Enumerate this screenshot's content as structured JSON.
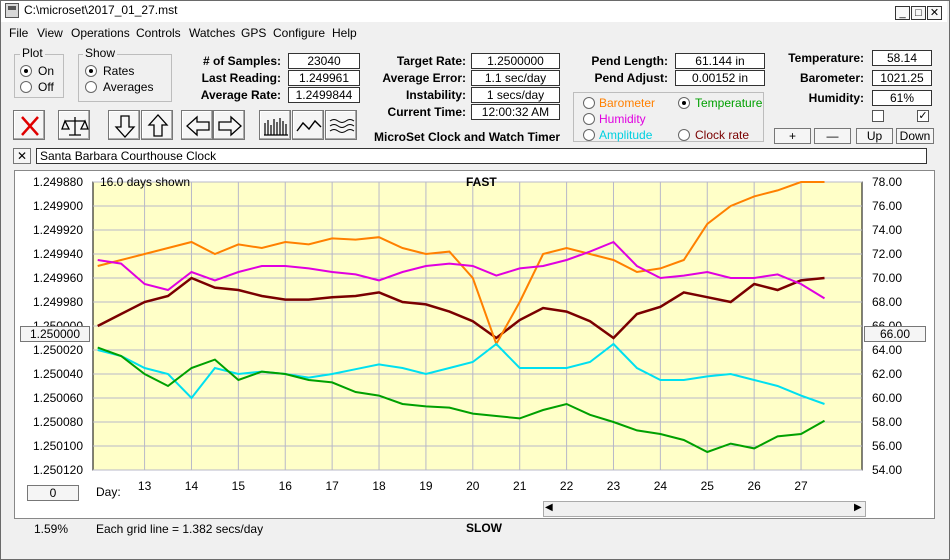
{
  "window": {
    "title": "C:\\microset\\2017_01_27.mst",
    "minimize": "_",
    "maximize": "□",
    "close": "✕"
  },
  "menu": [
    "File",
    "View",
    "Operations",
    "Controls",
    "Watches",
    "GPS",
    "Configure",
    "Help"
  ],
  "plot_group": {
    "title": "Plot",
    "on": "On",
    "off": "Off",
    "selected": "On"
  },
  "show_group": {
    "title": "Show",
    "rates": "Rates",
    "averages": "Averages",
    "selected": "Rates"
  },
  "stats": {
    "samples_label": "# of Samples:",
    "samples": "23040",
    "last_reading_label": "Last Reading:",
    "last_reading": "1.249961",
    "average_rate_label": "Average Rate:",
    "average_rate": "1.2499844",
    "target_rate_label": "Target Rate:",
    "target_rate": "1.2500000",
    "average_error_label": "Average Error:",
    "average_error": "1.1 sec/day",
    "instability_label": "Instability:",
    "instability": "1 secs/day",
    "current_time_label": "Current Time:",
    "current_time": "12:00:32 AM",
    "pend_length_label": "Pend Length:",
    "pend_length": "61.144 in",
    "pend_adjust_label": "Pend Adjust:",
    "pend_adjust": "0.00152 in"
  },
  "env": {
    "temperature_label": "Temperature:",
    "temperature": "58.14",
    "barometer_label": "Barometer:",
    "barometer": "1021.25",
    "humidity_label": "Humidity:",
    "humidity": "61%",
    "checkbox1": "",
    "checkbox2": "✓",
    "plus": "+",
    "minus": "—",
    "up": "Up",
    "down": "Down"
  },
  "app_name": "MicroSet Clock and Watch Timer",
  "aux_options": {
    "barometer": "Barometer",
    "temperature": "Temperature",
    "humidity": "Humidity",
    "amplitude": "Amplitude",
    "clock_rate": "Clock rate",
    "selected": "Temperature"
  },
  "clock": {
    "close": "✕",
    "name": "Santa Barbara Courthouse Clock"
  },
  "chart_labels": {
    "days_shown": "16.0 days shown",
    "fast": "FAST",
    "slow": "SLOW",
    "day_prefix": "Day:",
    "grid_note": "Each grid line = 1.382 secs/day",
    "percent": "1.59%",
    "left_btn": "1.250000",
    "right_btn": "66.00",
    "bottom_btn": "0"
  },
  "colors": {
    "rate": "#7a0000",
    "barometer": "#ff8000",
    "temperature": "#00a000",
    "humidity": "#e000e0",
    "amplitude": "#00e0f0",
    "plot_bg": "#ffffc8",
    "grid": "#b8b8c8"
  },
  "chart_data": {
    "type": "line",
    "x_label": "Day:",
    "x": [
      12.0,
      12.5,
      13.0,
      13.5,
      14.0,
      14.5,
      15.0,
      15.5,
      16.0,
      16.5,
      17.0,
      17.5,
      18.0,
      18.5,
      19.0,
      19.5,
      20.0,
      20.5,
      21.0,
      21.5,
      22.0,
      22.5,
      23.0,
      23.5,
      24.0,
      24.5,
      25.0,
      25.5,
      26.0,
      26.5,
      27.0,
      27.5
    ],
    "x_ticks": [
      13,
      14,
      15,
      16,
      17,
      18,
      19,
      20,
      21,
      22,
      23,
      24,
      25,
      26,
      27
    ],
    "xlim": [
      11.9,
      28.3
    ],
    "y_left": {
      "label": "Rate",
      "ticks": [
        "1.249880",
        "1.249900",
        "1.249920",
        "1.249940",
        "1.249960",
        "1.249980",
        "1.250000",
        "1.250020",
        "1.250040",
        "1.250060",
        "1.250080",
        "1.250100",
        "1.250120"
      ],
      "lim": [
        1.24988,
        1.25012
      ],
      "inverted": true
    },
    "y_right": {
      "ticks": [
        "78.00",
        "76.00",
        "74.00",
        "72.00",
        "70.00",
        "68.00",
        "66.00",
        "64.00",
        "62.00",
        "60.00",
        "58.00",
        "56.00",
        "54.00"
      ],
      "lim": [
        54,
        78
      ]
    },
    "series": [
      {
        "name": "Rate",
        "axis": "left",
        "color": "#7a0000",
        "values": [
          1.25,
          1.24999,
          1.24998,
          1.249975,
          1.24996,
          1.249968,
          1.24997,
          1.249975,
          1.249978,
          1.249978,
          1.249976,
          1.249975,
          1.249972,
          1.24998,
          1.249982,
          1.249988,
          1.249996,
          1.25001,
          1.249995,
          1.249985,
          1.249988,
          1.249996,
          1.25001,
          1.24999,
          1.249984,
          1.249972,
          1.249976,
          1.24998,
          1.249965,
          1.24997,
          1.249962,
          1.24996
        ]
      },
      {
        "name": "Barometer",
        "axis": "right",
        "color": "#ff8000",
        "values": [
          71.0,
          71.5,
          72.0,
          72.5,
          73.0,
          72.0,
          72.8,
          72.5,
          73.0,
          72.8,
          73.3,
          73.2,
          73.4,
          72.5,
          72.0,
          72.2,
          70.0,
          64.5,
          68.0,
          72.0,
          72.5,
          72.0,
          71.5,
          70.5,
          70.8,
          71.5,
          74.5,
          76.0,
          76.8,
          77.3,
          78.0,
          78.0
        ]
      },
      {
        "name": "Humidity",
        "axis": "right",
        "color": "#e000e0",
        "values": [
          71.5,
          71.2,
          69.5,
          69.0,
          70.5,
          69.8,
          70.5,
          71.0,
          71.0,
          70.8,
          70.5,
          70.3,
          69.8,
          70.5,
          71.0,
          71.2,
          71.0,
          70.2,
          70.8,
          71.0,
          71.5,
          72.2,
          73.0,
          71.0,
          70.0,
          70.2,
          70.5,
          70.0,
          70.0,
          70.3,
          69.5,
          68.3
        ]
      },
      {
        "name": "Amplitude",
        "axis": "right",
        "color": "#00e0f0",
        "values": [
          64.0,
          63.5,
          62.5,
          62.0,
          60.0,
          62.5,
          62.0,
          62.2,
          62.0,
          61.7,
          62.0,
          62.4,
          62.8,
          62.5,
          62.0,
          62.5,
          63.0,
          64.5,
          62.5,
          62.5,
          62.5,
          63.0,
          64.5,
          62.5,
          61.5,
          61.5,
          61.8,
          62.0,
          61.5,
          61.0,
          60.2,
          59.5
        ]
      },
      {
        "name": "Temperature",
        "axis": "right",
        "color": "#00a000",
        "values": [
          64.2,
          63.5,
          62.0,
          61.0,
          62.5,
          63.2,
          61.5,
          62.2,
          62.0,
          61.5,
          61.3,
          60.5,
          60.2,
          59.5,
          59.3,
          59.2,
          58.7,
          58.5,
          58.3,
          59.0,
          59.5,
          58.6,
          58.0,
          57.3,
          57.0,
          56.5,
          55.5,
          56.2,
          55.8,
          56.8,
          57.0,
          58.1
        ]
      }
    ]
  }
}
